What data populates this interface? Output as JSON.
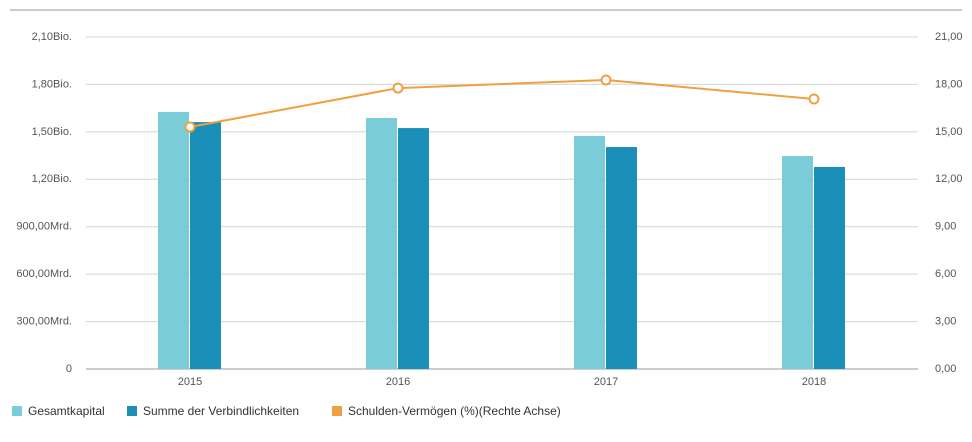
{
  "chart_data": {
    "type": "bar",
    "categories": [
      "2015",
      "2016",
      "2017",
      "2018"
    ],
    "series": [
      {
        "name": "Gesamtkapital",
        "color": "#7accd8",
        "values": [
          1626000000000,
          1588000000000,
          1474000000000,
          1347000000000
        ]
      },
      {
        "name": "Summe der Verbindlichkeiten",
        "color": "#1a8fb8",
        "values": [
          1562000000000,
          1524000000000,
          1404000000000,
          1278000000000
        ]
      },
      {
        "name": "Schulden-Vermögen (%)(Rechte Achse)",
        "color": "#f0a040",
        "type": "line",
        "axis": "y2",
        "values": [
          15.31,
          17.77,
          18.28,
          17.08
        ]
      }
    ],
    "ylim": [
      0,
      2100000000000
    ],
    "yticks": [
      0,
      {
        "value": 300000000000,
        "label": "300,00Mrd."
      },
      {
        "value": 600000000000,
        "label": "600,00Mrd."
      },
      {
        "value": 900000000000,
        "label": "900,00Mrd."
      },
      {
        "value": 1200000000000,
        "label": "1,20Bio."
      },
      {
        "value": 1500000000000,
        "label": "1,50Bio."
      },
      {
        "value": 1800000000000,
        "label": "1,80Bio."
      },
      {
        "value": 2100000000000,
        "label": "2,10Bio."
      }
    ],
    "y2lim": [
      0,
      21
    ],
    "y2ticks": [
      {
        "value": 0,
        "label": "0,00"
      },
      {
        "value": 3,
        "label": "3,00"
      },
      {
        "value": 6,
        "label": "6,00"
      },
      {
        "value": 9,
        "label": "9,00"
      },
      {
        "value": 12,
        "label": "12,00"
      },
      {
        "value": 15,
        "label": "15,00"
      },
      {
        "value": 18,
        "label": "18,00"
      },
      {
        "value": 21,
        "label": "21,00"
      }
    ],
    "grid": true
  }
}
